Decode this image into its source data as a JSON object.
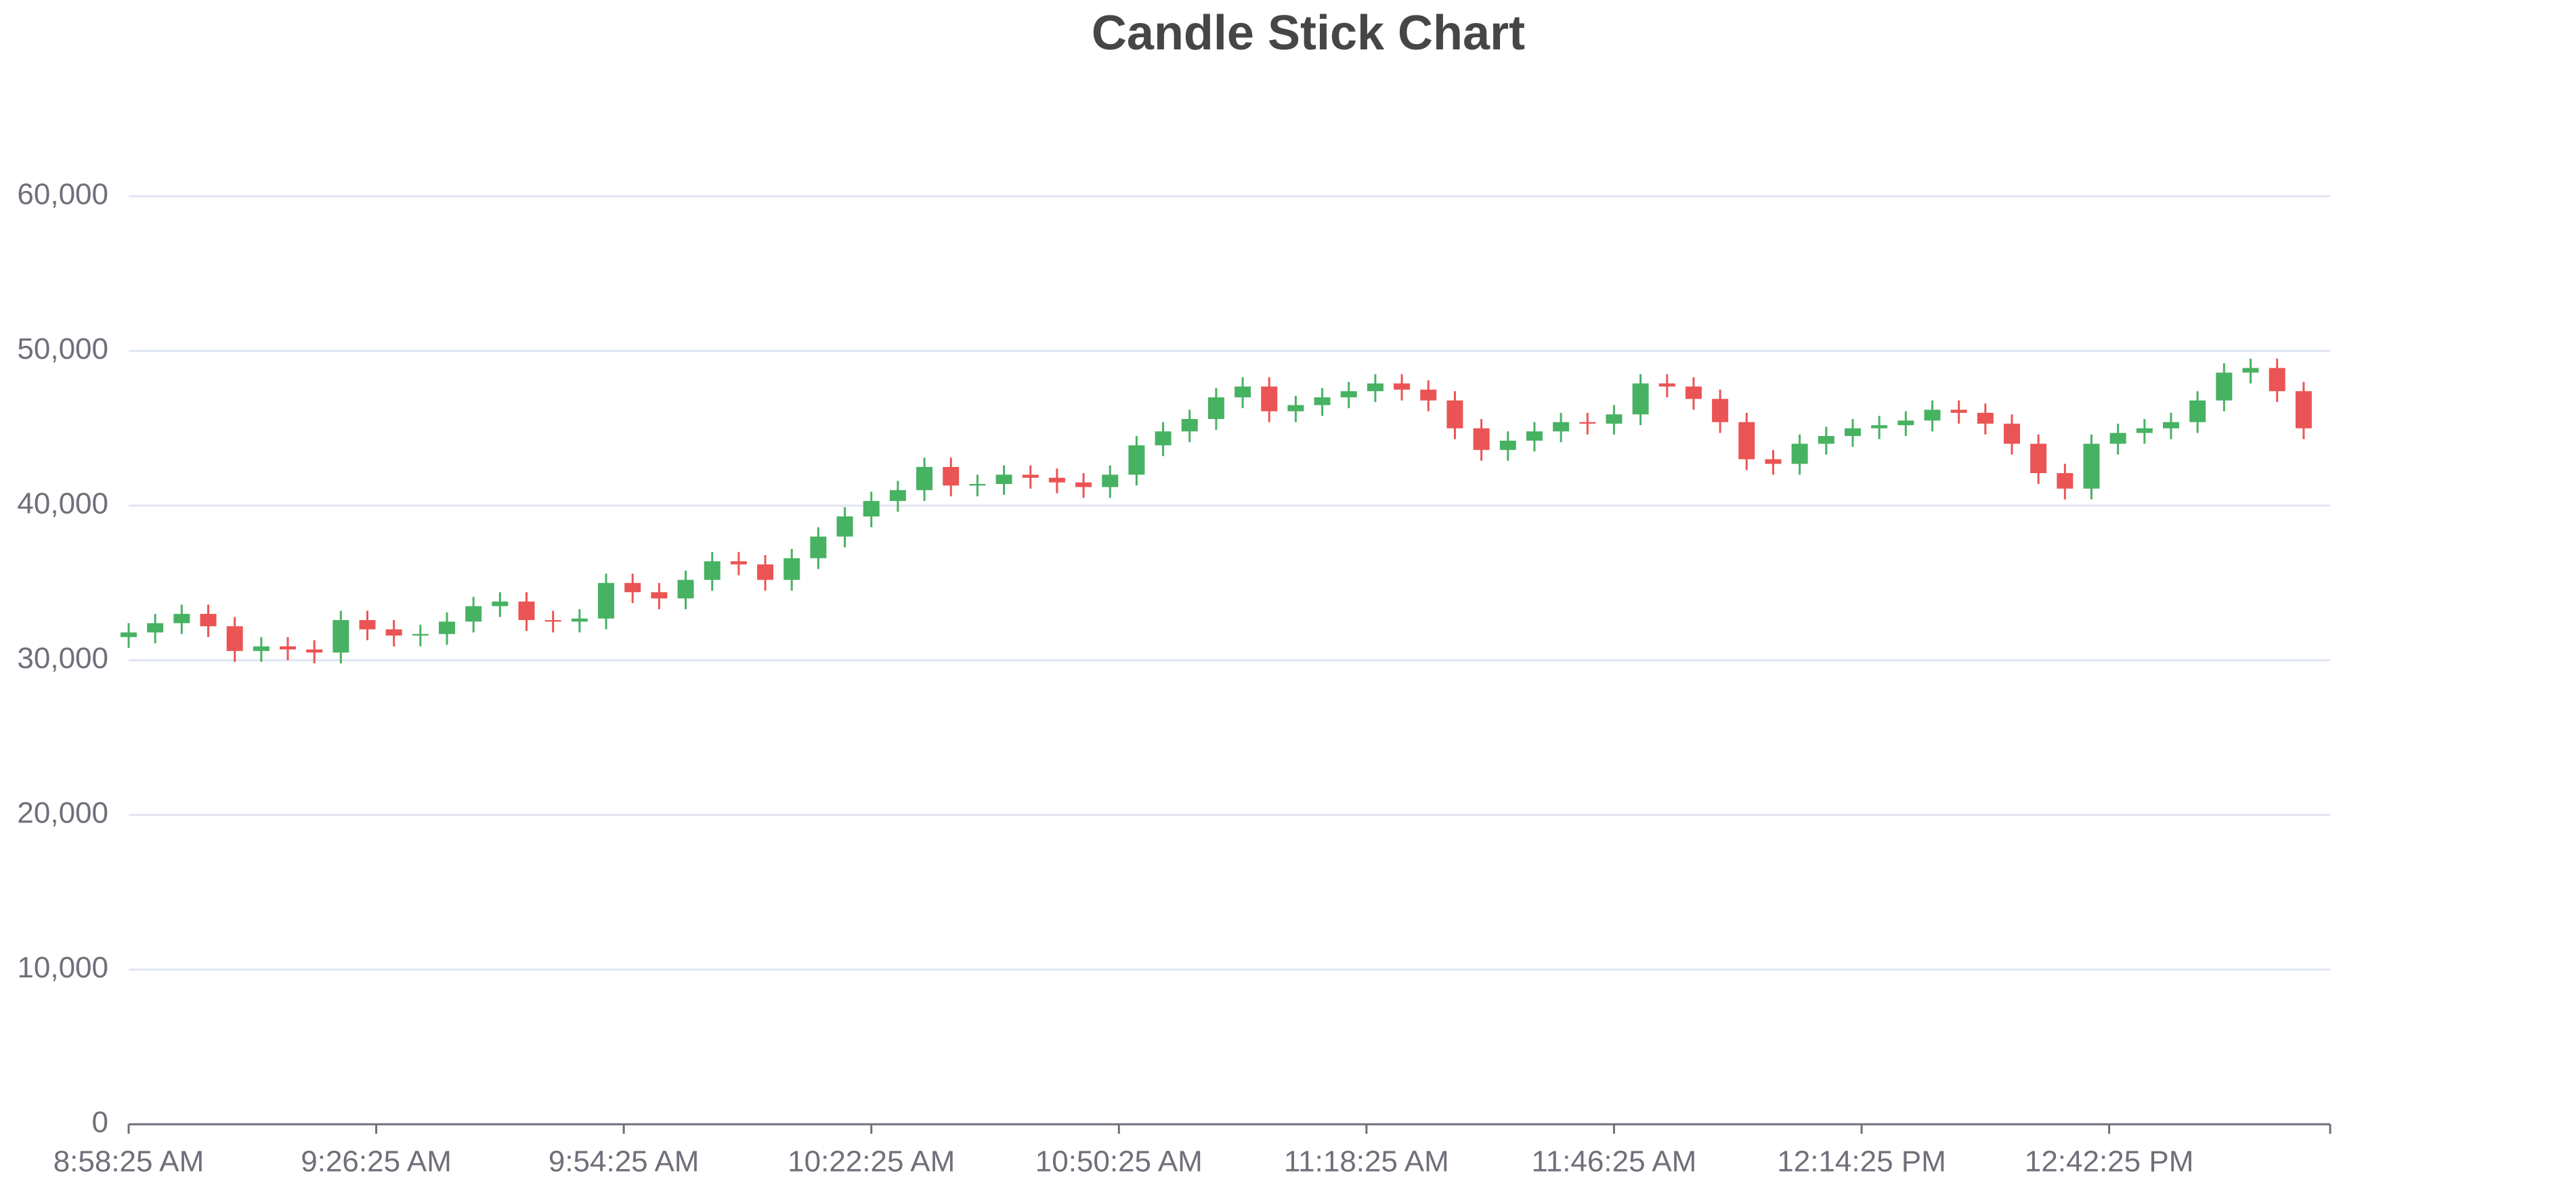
{
  "chart_data": {
    "type": "candlestick",
    "title": "Candle Stick Chart",
    "x": [
      "8:58:25 AM",
      "9:01:25 AM",
      "9:04:25 AM",
      "9:07:25 AM",
      "9:10:25 AM",
      "9:13:25 AM",
      "9:16:25 AM",
      "9:19:25 AM",
      "9:22:25 AM",
      "9:25:25 AM",
      "9:28:25 AM",
      "9:31:25 AM",
      "9:34:25 AM",
      "9:37:25 AM",
      "9:40:25 AM",
      "9:43:25 AM",
      "9:46:25 AM",
      "9:49:25 AM",
      "9:52:25 AM",
      "9:55:25 AM",
      "9:58:25 AM",
      "10:01:25 AM",
      "10:04:25 AM",
      "10:07:25 AM",
      "10:10:25 AM",
      "10:13:25 AM",
      "10:16:25 AM",
      "10:19:25 AM",
      "10:22:25 AM",
      "10:25:25 AM",
      "10:28:25 AM",
      "10:31:25 AM",
      "10:34:25 AM",
      "10:37:25 AM",
      "10:40:25 AM",
      "10:43:25 AM",
      "10:46:25 AM",
      "10:49:25 AM",
      "10:52:25 AM",
      "10:55:25 AM",
      "10:58:25 AM",
      "11:01:25 AM",
      "11:04:25 AM",
      "11:07:25 AM",
      "11:10:25 AM",
      "11:13:25 AM",
      "11:16:25 AM",
      "11:19:25 AM",
      "11:22:25 AM",
      "11:25:25 AM",
      "11:28:25 AM",
      "11:31:25 AM",
      "11:34:25 AM",
      "11:37:25 AM",
      "11:40:25 AM",
      "11:43:25 AM",
      "11:46:25 AM",
      "11:49:25 AM",
      "11:52:25 AM",
      "11:55:25 AM",
      "11:58:25 AM",
      "12:01:25 PM",
      "12:04:25 PM",
      "12:07:25 PM",
      "12:10:25 PM",
      "12:13:25 PM",
      "12:16:25 PM",
      "12:19:25 PM",
      "12:22:25 PM",
      "12:25:25 PM",
      "12:28:25 PM",
      "12:31:25 PM",
      "12:34:25 PM",
      "12:37:25 PM",
      "12:40:25 PM",
      "12:43:25 PM",
      "12:46:25 PM",
      "12:49:25 PM",
      "12:52:25 PM",
      "12:55:25 PM",
      "12:58:25 PM",
      "1:01:25 PM",
      "1:04:25 PM"
    ],
    "open": [
      31500,
      31800,
      32400,
      33000,
      32200,
      30600,
      30900,
      30700,
      30500,
      32600,
      32000,
      31600,
      31700,
      32500,
      33500,
      33800,
      32600,
      32500,
      32700,
      35000,
      34400,
      34000,
      35200,
      36400,
      36200,
      35200,
      36600,
      38000,
      39300,
      40300,
      41000,
      42500,
      41300,
      41400,
      42000,
      41800,
      41500,
      41200,
      42000,
      43900,
      44800,
      45600,
      47000,
      47700,
      46100,
      46500,
      47000,
      47400,
      47900,
      47500,
      46800,
      45000,
      43600,
      44200,
      44800,
      45400,
      45300,
      45900,
      47900,
      47700,
      46900,
      45400,
      43000,
      42700,
      44000,
      44500,
      45000,
      45200,
      45500,
      46200,
      46000,
      45300,
      44000,
      42100,
      41100,
      44000,
      44700,
      45000,
      45400,
      46800,
      48600,
      48900,
      47400
    ],
    "high": [
      32400,
      33000,
      33600,
      33600,
      32800,
      31500,
      31500,
      31300,
      33200,
      33200,
      32600,
      32300,
      33100,
      34100,
      34400,
      34400,
      33200,
      33300,
      35600,
      35600,
      35000,
      35800,
      37000,
      37000,
      36800,
      37200,
      38600,
      39900,
      40900,
      41600,
      43100,
      43100,
      42000,
      42600,
      42600,
      42400,
      42100,
      42600,
      44500,
      45400,
      46200,
      47600,
      48300,
      48300,
      47100,
      47600,
      48000,
      48500,
      48500,
      48100,
      47400,
      45600,
      44800,
      45400,
      46000,
      46000,
      46500,
      48500,
      48500,
      48300,
      47500,
      46000,
      43600,
      44600,
      45100,
      45600,
      45800,
      46100,
      46800,
      46800,
      46600,
      45900,
      44600,
      42700,
      44600,
      45300,
      45600,
      46000,
      47400,
      49200,
      49500,
      49500,
      48000
    ],
    "low": [
      30800,
      31100,
      31700,
      31500,
      29900,
      29900,
      30000,
      29800,
      29800,
      31300,
      30900,
      30900,
      31000,
      31800,
      32800,
      31900,
      31800,
      31800,
      32000,
      33700,
      33300,
      33300,
      34500,
      35500,
      34500,
      34500,
      35900,
      37300,
      38600,
      39600,
      40300,
      40600,
      40600,
      40700,
      41100,
      40800,
      40500,
      40500,
      41300,
      43200,
      44100,
      44900,
      46300,
      45400,
      45400,
      45800,
      46300,
      46700,
      46800,
      46100,
      44300,
      42900,
      42900,
      43500,
      44100,
      44600,
      44600,
      45200,
      47000,
      46200,
      44700,
      42300,
      42000,
      42000,
      43300,
      43800,
      44300,
      44500,
      44800,
      45300,
      44600,
      43300,
      41400,
      40400,
      40400,
      43300,
      44000,
      44300,
      44700,
      46100,
      47900,
      46700,
      44300
    ],
    "close": [
      31800,
      32400,
      33000,
      32200,
      30600,
      30900,
      30700,
      30500,
      32600,
      32000,
      31600,
      31700,
      32500,
      33500,
      33800,
      32600,
      32500,
      32700,
      35000,
      34400,
      34000,
      35200,
      36400,
      36200,
      35200,
      36600,
      38000,
      39300,
      40300,
      41000,
      42500,
      41300,
      41400,
      42000,
      41800,
      41500,
      41200,
      42000,
      43900,
      44800,
      45600,
      47000,
      47700,
      46100,
      46500,
      47000,
      47400,
      47900,
      47500,
      46800,
      45000,
      43600,
      44200,
      44800,
      45400,
      45300,
      45900,
      47900,
      47700,
      46900,
      45400,
      43000,
      42700,
      44000,
      44500,
      45000,
      45200,
      45500,
      46200,
      46000,
      45300,
      44000,
      42100,
      41100,
      44000,
      44700,
      45000,
      45400,
      46800,
      48600,
      48900,
      47400,
      45000
    ],
    "up_color": "#47b262",
    "down_color": "#eb5454",
    "xlim": [
      "8:58:25 AM",
      "1:07:25 PM"
    ],
    "xticks": [
      "8:58:25 AM",
      "9:26:25 AM",
      "9:54:25 AM",
      "10:22:25 AM",
      "10:50:25 AM",
      "11:18:25 AM",
      "11:46:25 AM",
      "12:14:25 PM",
      "12:42:25 PM"
    ],
    "ylim": [
      0,
      60000
    ],
    "yticks": [
      0,
      {
        "value": 10000,
        "label": "10,000"
      },
      {
        "value": 20000,
        "label": "20,000"
      },
      {
        "value": 30000,
        "label": "30,000"
      },
      {
        "value": 40000,
        "label": "40,000"
      },
      {
        "value": 50000,
        "label": "50,000"
      },
      {
        "value": 60000,
        "label": "60,000"
      }
    ],
    "grid": true
  }
}
